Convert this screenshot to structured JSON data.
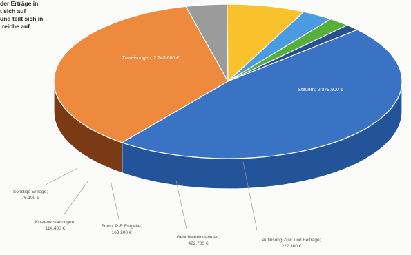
{
  "intro_text": [
    "der Erträge in",
    "t sich auf",
    "und teilt sich in",
    "reiche auf:"
  ],
  "chart_data": {
    "type": "pie",
    "title": "",
    "slices": [
      {
        "label": "Zuweisungen",
        "value": 2743600,
        "value_text": "2.743.600 €",
        "color": "#3a73c4",
        "side": "#23549a"
      },
      {
        "label": "Steuern",
        "value": 2079900,
        "value_text": "2.079.900 €",
        "color": "#ee8a3e",
        "side": "#7a3a14"
      },
      {
        "label": "Auflösung Zuw. und Beiträge",
        "value": 222300,
        "value_text": "222.300 €",
        "color": "#9b9b9b",
        "side": "#5a5a5a"
      },
      {
        "label": "Gebühreneinnahmen",
        "value": 422700,
        "value_text": "422.700 €",
        "color": "#f9c12c",
        "side": "#c48a10"
      },
      {
        "label": "Sonst. P-R Entgelte",
        "value": 168200,
        "value_text": "168.200 €",
        "color": "#4b9be0",
        "side": "#2c6ea8"
      },
      {
        "label": "Kostenerstattungen",
        "value": 114400,
        "value_text": "114.400 €",
        "color": "#55b03a",
        "side": "#3a7f24"
      },
      {
        "label": "Sonstige Erträge",
        "value": 76100,
        "value_text": "76.100 €",
        "color": "#2a4f8e",
        "side": "#1b3563"
      }
    ]
  }
}
